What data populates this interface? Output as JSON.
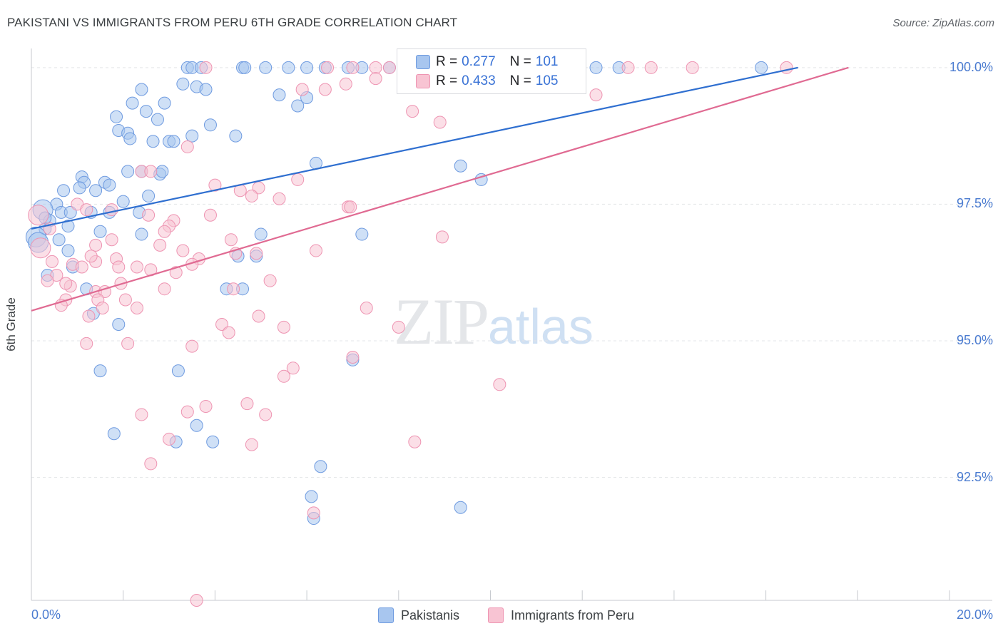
{
  "header": {
    "title": "PAKISTANI VS IMMIGRANTS FROM PERU 6TH GRADE CORRELATION CHART",
    "source": "Source: ZipAtlas.com"
  },
  "watermark": {
    "zip": "ZIP",
    "atlas": "atlas"
  },
  "legend": {
    "r_label": "R =",
    "n_label": "N =",
    "entries": [
      {
        "r": "0.277",
        "n": "101",
        "color": "#a8c6ef"
      },
      {
        "r": "0.433",
        "n": "105",
        "color": "#f5b8cb"
      }
    ]
  },
  "colors": {
    "blue_fill": "#a8c6ef",
    "blue_stroke": "#6f9be0",
    "blue_line": "#2f6fd0",
    "pink_fill": "#f8c4d3",
    "pink_stroke": "#ee94b2",
    "pink_line": "#e06a92",
    "grid": "#e3e5e8",
    "tick_text": "#4a7bd0"
  },
  "chart_data": {
    "type": "scatter",
    "title": "PAKISTANI VS IMMIGRANTS FROM PERU 6TH GRADE CORRELATION CHART",
    "xlabel": "",
    "ylabel": "6th Grade",
    "xlim": [
      0,
      20
    ],
    "ylim": [
      90.25,
      100.35
    ],
    "x_tick_labels": [
      "0.0%",
      "20.0%"
    ],
    "y_ticks": [
      92.5,
      95.0,
      97.5,
      100.0
    ],
    "y_tick_labels": [
      "92.5%",
      "95.0%",
      "97.5%",
      "100.0%"
    ],
    "legend_position": "bottom-center",
    "series": [
      {
        "name": "Pakistanis",
        "r": 0.277,
        "n": 101,
        "trend": {
          "x": [
            0,
            16.7
          ],
          "y": [
            97.05,
            100.0
          ]
        },
        "points": [
          [
            3.4,
            100.0
          ],
          [
            3.5,
            100.0
          ],
          [
            3.7,
            100.0
          ],
          [
            4.6,
            100.0
          ],
          [
            4.65,
            100.0
          ],
          [
            5.1,
            100.0
          ],
          [
            5.6,
            100.0
          ],
          [
            6.0,
            100.0
          ],
          [
            6.4,
            100.0
          ],
          [
            6.9,
            100.0
          ],
          [
            7.2,
            100.0
          ],
          [
            7.8,
            100.0
          ],
          [
            8.15,
            100.0
          ],
          [
            8.4,
            100.0
          ],
          [
            8.6,
            100.0
          ],
          [
            12.3,
            100.0
          ],
          [
            12.8,
            100.0
          ],
          [
            15.9,
            100.0
          ],
          [
            3.3,
            99.7
          ],
          [
            3.6,
            99.65
          ],
          [
            3.8,
            99.6
          ],
          [
            2.4,
            99.6
          ],
          [
            5.4,
            99.5
          ],
          [
            5.8,
            99.3
          ],
          [
            6.0,
            99.45
          ],
          [
            2.2,
            99.35
          ],
          [
            2.5,
            99.2
          ],
          [
            2.9,
            99.35
          ],
          [
            1.85,
            99.1
          ],
          [
            2.75,
            99.05
          ],
          [
            3.9,
            98.95
          ],
          [
            1.9,
            98.85
          ],
          [
            2.1,
            98.8
          ],
          [
            2.15,
            98.7
          ],
          [
            2.65,
            98.65
          ],
          [
            3.0,
            98.65
          ],
          [
            3.1,
            98.65
          ],
          [
            3.5,
            98.75
          ],
          [
            4.45,
            98.75
          ],
          [
            6.2,
            98.25
          ],
          [
            9.35,
            98.2
          ],
          [
            9.8,
            97.95
          ],
          [
            1.1,
            98.0
          ],
          [
            1.15,
            97.9
          ],
          [
            1.6,
            97.9
          ],
          [
            1.7,
            97.85
          ],
          [
            2.1,
            98.1
          ],
          [
            2.4,
            98.1
          ],
          [
            2.8,
            98.05
          ],
          [
            2.85,
            98.1
          ],
          [
            0.7,
            97.75
          ],
          [
            1.05,
            97.8
          ],
          [
            1.4,
            97.75
          ],
          [
            2.0,
            97.55
          ],
          [
            2.55,
            97.65
          ],
          [
            0.55,
            97.5
          ],
          [
            0.25,
            97.4
          ],
          [
            0.65,
            97.35
          ],
          [
            0.85,
            97.35
          ],
          [
            1.3,
            97.35
          ],
          [
            1.7,
            97.35
          ],
          [
            2.35,
            97.35
          ],
          [
            0.4,
            97.2
          ],
          [
            0.8,
            97.1
          ],
          [
            0.3,
            97.05
          ],
          [
            1.5,
            97.0
          ],
          [
            2.4,
            96.95
          ],
          [
            5.0,
            96.95
          ],
          [
            7.2,
            96.95
          ],
          [
            0.1,
            96.9
          ],
          [
            0.6,
            96.85
          ],
          [
            0.8,
            96.65
          ],
          [
            4.5,
            96.55
          ],
          [
            4.9,
            96.55
          ],
          [
            0.35,
            96.2
          ],
          [
            0.9,
            96.35
          ],
          [
            1.2,
            95.95
          ],
          [
            4.25,
            95.95
          ],
          [
            4.6,
            95.95
          ],
          [
            1.35,
            95.5
          ],
          [
            1.9,
            95.3
          ],
          [
            7.0,
            94.65
          ],
          [
            1.5,
            94.45
          ],
          [
            3.2,
            94.45
          ],
          [
            3.6,
            93.45
          ],
          [
            1.8,
            93.3
          ],
          [
            3.15,
            93.15
          ],
          [
            3.95,
            93.15
          ],
          [
            6.3,
            92.7
          ],
          [
            6.1,
            92.15
          ],
          [
            6.15,
            91.75
          ],
          [
            9.35,
            91.95
          ],
          [
            0.15,
            96.8
          ],
          [
            0.3,
            97.25
          ]
        ]
      },
      {
        "name": "Immigrants from Peru",
        "r": 0.433,
        "n": 105,
        "trend": {
          "x": [
            0,
            17.8
          ],
          "y": [
            95.55,
            100.0
          ]
        },
        "points": [
          [
            3.8,
            100.0
          ],
          [
            6.45,
            100.0
          ],
          [
            7.0,
            100.0
          ],
          [
            7.5,
            100.0
          ],
          [
            7.8,
            100.0
          ],
          [
            8.3,
            100.0
          ],
          [
            8.45,
            100.0
          ],
          [
            8.65,
            100.0
          ],
          [
            9.4,
            100.0
          ],
          [
            10.2,
            100.0
          ],
          [
            11.3,
            100.0
          ],
          [
            11.7,
            100.0
          ],
          [
            13.0,
            100.0
          ],
          [
            13.5,
            100.0
          ],
          [
            14.4,
            100.0
          ],
          [
            16.45,
            100.0
          ],
          [
            7.5,
            99.8
          ],
          [
            6.85,
            99.7
          ],
          [
            5.9,
            99.6
          ],
          [
            6.4,
            99.6
          ],
          [
            12.3,
            99.5
          ],
          [
            8.3,
            99.2
          ],
          [
            8.9,
            99.0
          ],
          [
            3.4,
            98.55
          ],
          [
            2.4,
            98.1
          ],
          [
            2.6,
            98.1
          ],
          [
            5.8,
            97.95
          ],
          [
            4.0,
            97.85
          ],
          [
            4.55,
            97.75
          ],
          [
            4.95,
            97.8
          ],
          [
            4.8,
            97.65
          ],
          [
            5.4,
            97.6
          ],
          [
            6.9,
            97.45
          ],
          [
            6.95,
            97.45
          ],
          [
            1.0,
            97.5
          ],
          [
            1.2,
            97.4
          ],
          [
            1.75,
            97.4
          ],
          [
            3.9,
            97.3
          ],
          [
            3.1,
            97.2
          ],
          [
            2.55,
            97.3
          ],
          [
            3.0,
            97.1
          ],
          [
            2.9,
            97.0
          ],
          [
            0.4,
            97.05
          ],
          [
            1.75,
            96.85
          ],
          [
            4.35,
            96.85
          ],
          [
            8.95,
            96.9
          ],
          [
            1.4,
            96.75
          ],
          [
            2.8,
            96.75
          ],
          [
            3.3,
            96.65
          ],
          [
            6.2,
            96.65
          ],
          [
            4.45,
            96.6
          ],
          [
            4.9,
            96.6
          ],
          [
            1.85,
            96.5
          ],
          [
            1.4,
            96.45
          ],
          [
            3.65,
            96.5
          ],
          [
            0.9,
            96.4
          ],
          [
            1.1,
            96.35
          ],
          [
            1.9,
            96.35
          ],
          [
            2.3,
            96.35
          ],
          [
            3.5,
            96.4
          ],
          [
            0.55,
            96.2
          ],
          [
            0.85,
            96.0
          ],
          [
            3.15,
            96.25
          ],
          [
            5.2,
            96.1
          ],
          [
            0.75,
            96.05
          ],
          [
            1.95,
            96.05
          ],
          [
            2.9,
            95.95
          ],
          [
            4.4,
            95.95
          ],
          [
            1.4,
            95.9
          ],
          [
            1.6,
            95.9
          ],
          [
            0.75,
            95.75
          ],
          [
            1.45,
            95.75
          ],
          [
            2.05,
            95.75
          ],
          [
            1.55,
            95.6
          ],
          [
            2.3,
            95.6
          ],
          [
            0.65,
            95.65
          ],
          [
            7.3,
            95.6
          ],
          [
            1.25,
            95.45
          ],
          [
            4.95,
            95.45
          ],
          [
            4.15,
            95.3
          ],
          [
            5.5,
            95.25
          ],
          [
            8.0,
            95.25
          ],
          [
            4.3,
            95.15
          ],
          [
            1.2,
            94.95
          ],
          [
            2.1,
            94.95
          ],
          [
            3.5,
            94.9
          ],
          [
            7.0,
            94.7
          ],
          [
            5.7,
            94.5
          ],
          [
            5.5,
            94.35
          ],
          [
            10.2,
            94.2
          ],
          [
            4.7,
            93.85
          ],
          [
            3.8,
            93.8
          ],
          [
            2.4,
            93.65
          ],
          [
            3.4,
            93.7
          ],
          [
            5.1,
            93.65
          ],
          [
            3.0,
            93.2
          ],
          [
            4.8,
            93.1
          ],
          [
            8.35,
            93.15
          ],
          [
            2.6,
            92.75
          ],
          [
            6.15,
            91.85
          ],
          [
            3.6,
            90.25
          ],
          [
            0.15,
            97.3
          ],
          [
            0.2,
            96.7
          ],
          [
            0.35,
            96.1
          ],
          [
            0.45,
            96.45
          ],
          [
            1.3,
            96.55
          ],
          [
            2.6,
            96.3
          ]
        ]
      }
    ]
  },
  "bottom_legend": [
    "Pakistanis",
    "Immigrants from Peru"
  ]
}
